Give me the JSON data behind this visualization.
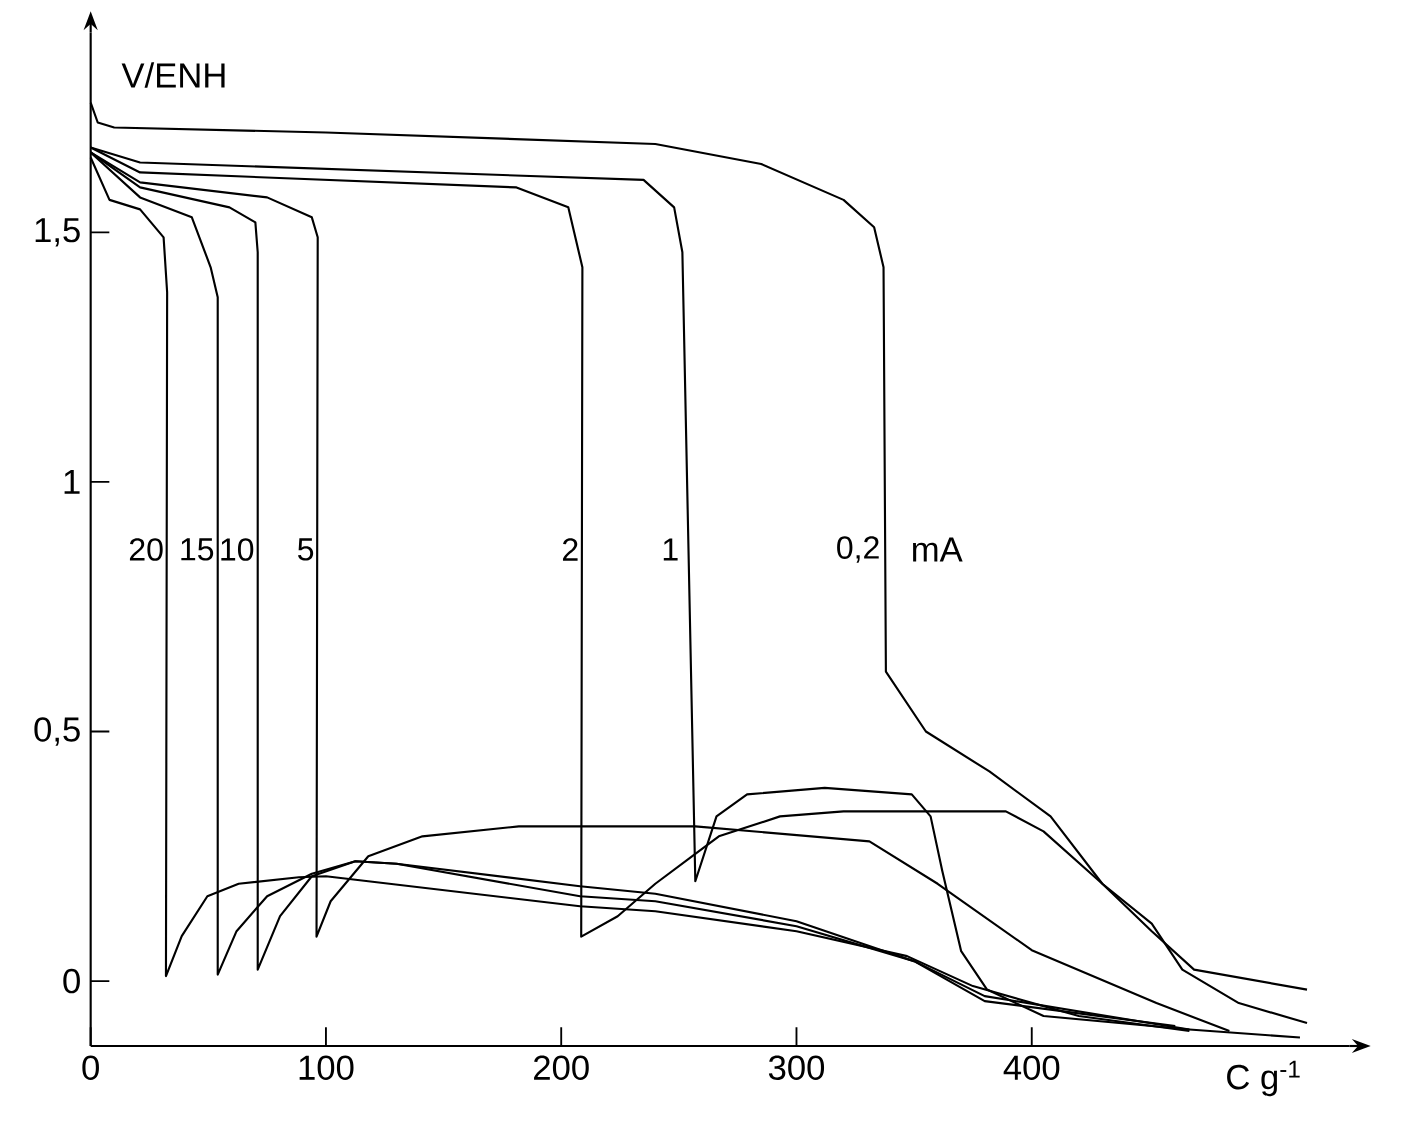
{
  "chart_data": {
    "type": "line",
    "xlabel": "C g$^{-1}$",
    "ylabel": "V/ENH",
    "xlim": [
      0,
      535
    ],
    "ylim": [
      -0.13,
      1.9
    ],
    "xticks": [
      {
        "value": 0,
        "label": "0"
      },
      {
        "value": 100,
        "label": "100"
      },
      {
        "value": 200,
        "label": "200"
      },
      {
        "value": 300,
        "label": "300"
      },
      {
        "value": 400,
        "label": "400"
      }
    ],
    "yticks": [
      {
        "value": 0,
        "label": "0"
      },
      {
        "value": 0.5,
        "label": "0,5"
      },
      {
        "value": 1,
        "label": "1"
      },
      {
        "value": 1.5,
        "label": "1,5"
      }
    ],
    "grid": false,
    "marker": "none",
    "line_style": "solid",
    "annotations": [
      "mA"
    ],
    "series": [
      {
        "name": "20",
        "color": "#000000",
        "x": [
          0,
          8,
          21,
          31,
          32.5,
          32,
          38.7,
          49.6,
          62.9,
          88.5,
          100,
          208,
          240,
          300,
          347,
          375,
          420,
          467
        ],
        "values": [
          1.65,
          1.565,
          1.546,
          1.49,
          1.38,
          0.01,
          0.09,
          0.17,
          0.195,
          0.208,
          0.21,
          0.15,
          0.14,
          0.1,
          0.05,
          -0.01,
          -0.07,
          -0.1
        ]
      },
      {
        "name": "15",
        "color": "#000000",
        "x": [
          0,
          21,
          43,
          51,
          54,
          54,
          62,
          75,
          94,
          112.5,
          130,
          208,
          240,
          300,
          350,
          380,
          467
        ],
        "values": [
          1.66,
          1.57,
          1.53,
          1.43,
          1.37,
          0.013,
          0.1,
          0.17,
          0.215,
          0.24,
          0.235,
          0.19,
          0.175,
          0.12,
          0.04,
          -0.03,
          -0.097
        ]
      },
      {
        "name": "10",
        "color": "#000000",
        "x": [
          0,
          21,
          59,
          70,
          71,
          71,
          80.5,
          94,
          112.5,
          130,
          208,
          240,
          300,
          350,
          380,
          461
        ],
        "values": [
          1.66,
          1.59,
          1.55,
          1.52,
          1.46,
          0.023,
          0.13,
          0.21,
          0.24,
          0.235,
          0.17,
          0.16,
          0.11,
          0.04,
          -0.04,
          -0.09
        ]
      },
      {
        "name": "5",
        "color": "#000000",
        "x": [
          0,
          21,
          75,
          94,
          96.5,
          96,
          102,
          118,
          141,
          182,
          257,
          331,
          360,
          400,
          453,
          484
        ],
        "values": [
          1.66,
          1.6,
          1.57,
          1.53,
          1.49,
          0.089,
          0.16,
          0.25,
          0.29,
          0.31,
          0.31,
          0.28,
          0.195,
          0.062,
          -0.044,
          -0.1
        ]
      },
      {
        "name": "2",
        "color": "#000000",
        "x": [
          0,
          21,
          181,
          203,
          209,
          208.5,
          224,
          240,
          257,
          267,
          293,
          320,
          360,
          389,
          405,
          430,
          451,
          464,
          488,
          517
        ],
        "values": [
          1.67,
          1.62,
          1.59,
          1.55,
          1.43,
          0.089,
          0.13,
          0.195,
          0.255,
          0.29,
          0.33,
          0.34,
          0.34,
          0.34,
          0.3,
          0.195,
          0.115,
          0.023,
          -0.044,
          -0.084
        ]
      },
      {
        "name": "1",
        "color": "#000000",
        "x": [
          0,
          21,
          235,
          248,
          251.5,
          257,
          266,
          279,
          312,
          349,
          357,
          362,
          370,
          381,
          405,
          467,
          514
        ],
        "values": [
          1.67,
          1.64,
          1.605,
          1.55,
          1.46,
          0.2,
          0.33,
          0.374,
          0.387,
          0.374,
          0.33,
          0.22,
          0.06,
          -0.017,
          -0.07,
          -0.097,
          -0.113
        ]
      },
      {
        "name": "0,2",
        "color": "#000000",
        "x": [
          0,
          3,
          10,
          100,
          240,
          285,
          320,
          333,
          337,
          338,
          355,
          382,
          408,
          430,
          451,
          469,
          517
        ],
        "values": [
          1.76,
          1.72,
          1.71,
          1.7,
          1.677,
          1.637,
          1.565,
          1.51,
          1.43,
          0.62,
          0.5,
          0.42,
          0.33,
          0.195,
          0.1,
          0.023,
          -0.017
        ]
      }
    ]
  }
}
